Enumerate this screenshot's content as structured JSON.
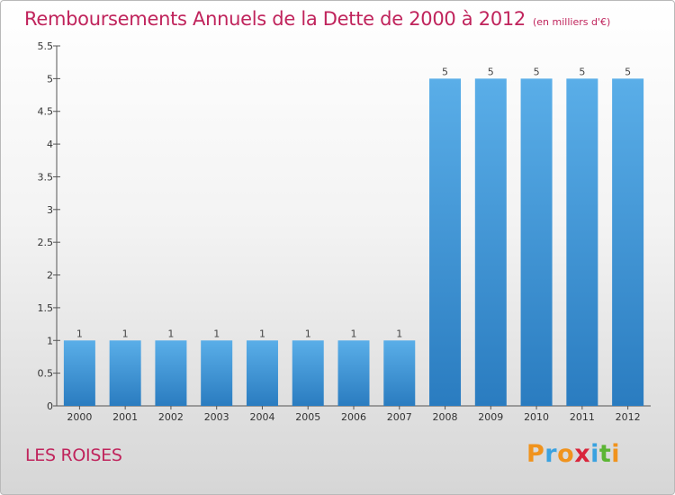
{
  "header": {
    "title": "Remboursements Annuels de la Dette de 2000 à 2012",
    "unit": "(en milliers d'€)"
  },
  "footer": {
    "commune": "LES ROISES",
    "logo_letters": [
      "P",
      "r",
      "o",
      "x",
      "i",
      "t",
      "i"
    ],
    "logo_colors": [
      "#f0931d",
      "#3aa2e0",
      "#f0931d",
      "#d9253b",
      "#3aa2e0",
      "#5cb534",
      "#f0931d"
    ]
  },
  "chart_data": {
    "type": "bar",
    "title": "Remboursements Annuels de la Dette de 2000 à 2012",
    "xlabel": "",
    "ylabel": "",
    "categories": [
      "2000",
      "2001",
      "2002",
      "2003",
      "2004",
      "2005",
      "2006",
      "2007",
      "2008",
      "2009",
      "2010",
      "2011",
      "2012"
    ],
    "values": [
      1,
      1,
      1,
      1,
      1,
      1,
      1,
      1,
      5,
      5,
      5,
      5,
      5
    ],
    "value_labels": [
      "1",
      "1",
      "1",
      "1",
      "1",
      "1",
      "1",
      "1",
      "5",
      "5",
      "5",
      "5",
      "5"
    ],
    "ylim": [
      0,
      5.5
    ],
    "yticks": [
      0,
      0.5,
      1,
      1.5,
      2,
      2.5,
      3,
      3.5,
      4,
      4.5,
      5,
      5.5
    ],
    "ytick_labels": [
      "0",
      "0.5",
      "1",
      "1.5",
      "2",
      "2.5",
      "3",
      "3.5",
      "4",
      "4.5",
      "5",
      "5.5"
    ],
    "grid": false,
    "bar_color_top": "#5aaee8",
    "bar_color_bottom": "#2a7cc0"
  }
}
